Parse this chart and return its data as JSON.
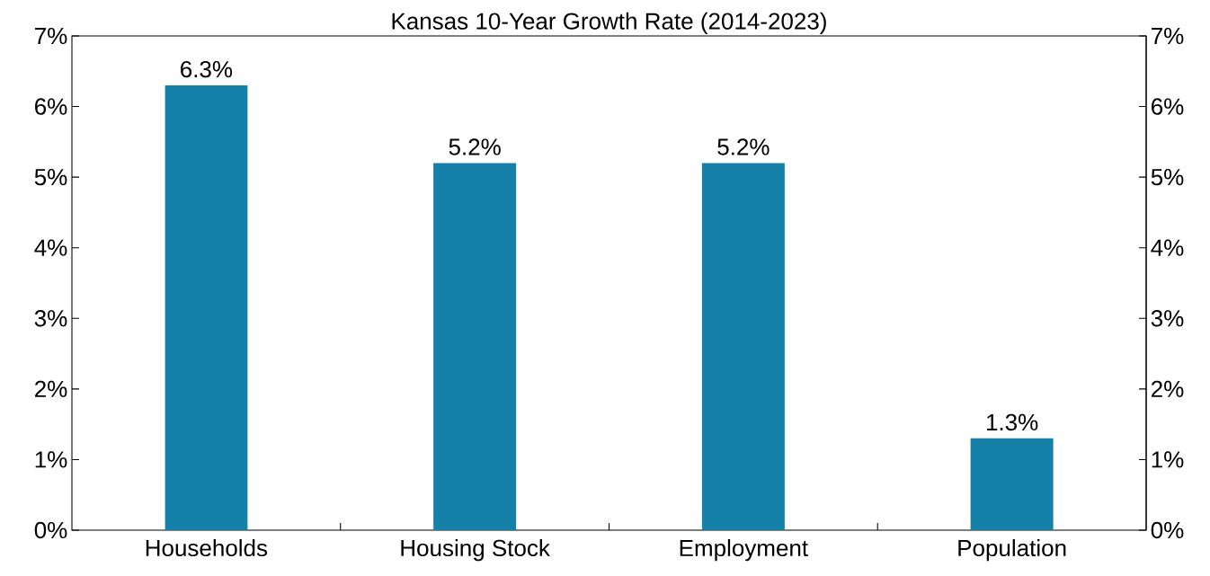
{
  "chart_data": {
    "type": "bar",
    "title": "Kansas 10-Year Growth Rate (2014-2023)",
    "categories": [
      "Households",
      "Housing Stock",
      "Employment",
      "Population"
    ],
    "values": [
      6.3,
      5.2,
      5.2,
      1.3
    ],
    "value_labels": [
      "6.3%",
      "5.2%",
      "5.2%",
      "1.3%"
    ],
    "color": "#1580a8",
    "ylim": [
      0,
      7
    ],
    "yticks": [
      {
        "value": 0,
        "label": "0%"
      },
      {
        "value": 1,
        "label": "1%"
      },
      {
        "value": 2,
        "label": "2%"
      },
      {
        "value": 3,
        "label": "3%"
      },
      {
        "value": 4,
        "label": "4%"
      },
      {
        "value": 5,
        "label": "5%"
      },
      {
        "value": 6,
        "label": "6%"
      },
      {
        "value": 7,
        "label": "7%"
      }
    ],
    "y2lim": [
      0,
      7
    ],
    "y2ticks": [
      {
        "value": 0,
        "label": "0%"
      },
      {
        "value": 1,
        "label": "1%"
      },
      {
        "value": 2,
        "label": "2%"
      },
      {
        "value": 3,
        "label": "3%"
      },
      {
        "value": 4,
        "label": "4%"
      },
      {
        "value": 5,
        "label": "5%"
      },
      {
        "value": 6,
        "label": "6%"
      },
      {
        "value": 7,
        "label": "7%"
      }
    ],
    "grid": false
  }
}
